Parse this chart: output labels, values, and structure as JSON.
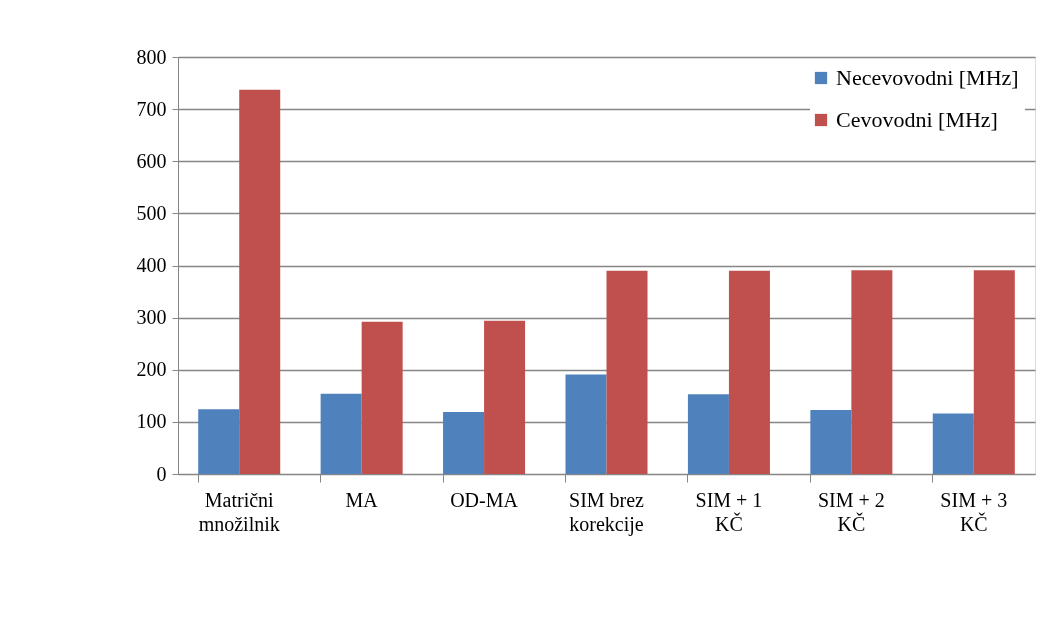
{
  "chart_data": {
    "type": "bar",
    "categories": [
      "Matrični\nmnožilnik",
      "MA",
      "OD-MA",
      "SIM brez\nkorekcije",
      "SIM + 1\nKČ",
      "SIM + 2\nKČ",
      "SIM + 3\nKČ"
    ],
    "series": [
      {
        "name": "Necevovodni  [MHz]",
        "color": "#4f81bd",
        "values": [
          124,
          154,
          119,
          191,
          153,
          123,
          116
        ]
      },
      {
        "name": "Cevovodni [MHz]",
        "color": "#c0504d",
        "values": [
          737,
          292,
          294,
          390,
          390,
          391,
          391
        ]
      }
    ],
    "ylim": [
      0,
      800
    ],
    "yticks": [
      0,
      100,
      200,
      300,
      400,
      500,
      600,
      700,
      800
    ],
    "grid": "y",
    "legend": "top right"
  }
}
